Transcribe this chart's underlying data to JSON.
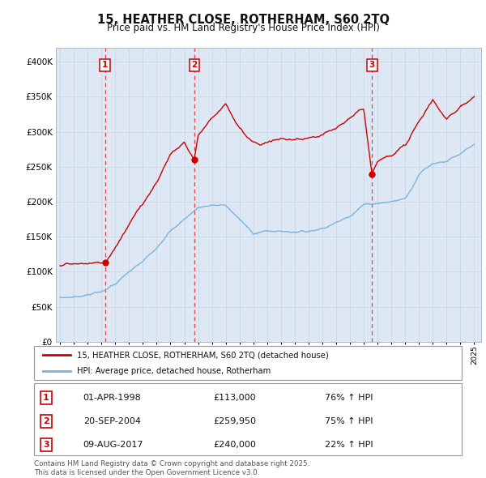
{
  "title": "15, HEATHER CLOSE, ROTHERHAM, S60 2TQ",
  "subtitle": "Price paid vs. HM Land Registry's House Price Index (HPI)",
  "sales": [
    {
      "date_num": 1998.25,
      "price": 113000,
      "label": "1",
      "date_str": "01-APR-1998",
      "pct": "76% ↑ HPI"
    },
    {
      "date_num": 2004.72,
      "price": 259950,
      "label": "2",
      "date_str": "20-SEP-2004",
      "pct": "75% ↑ HPI"
    },
    {
      "date_num": 2017.6,
      "price": 240000,
      "label": "3",
      "date_str": "09-AUG-2017",
      "pct": "22% ↑ HPI"
    }
  ],
  "hpi_line_color": "#7ab3e0",
  "price_line_color": "#cc0000",
  "sale_dot_color": "#cc0000",
  "dashed_line_color": "#dd4444",
  "grid_color": "#c8d8e8",
  "background_color": "#ffffff",
  "plot_bg_color": "#dde8f4",
  "xmin": 1994.7,
  "xmax": 2025.5,
  "ymin": 0,
  "ymax": 420000,
  "yticks": [
    0,
    50000,
    100000,
    150000,
    200000,
    250000,
    300000,
    350000,
    400000
  ],
  "ytick_labels": [
    "£0",
    "£50K",
    "£100K",
    "£150K",
    "£200K",
    "£250K",
    "£300K",
    "£350K",
    "£400K"
  ],
  "xticks": [
    1995,
    1996,
    1997,
    1998,
    1999,
    2000,
    2001,
    2002,
    2003,
    2004,
    2005,
    2006,
    2007,
    2008,
    2009,
    2010,
    2011,
    2012,
    2013,
    2014,
    2015,
    2016,
    2017,
    2018,
    2019,
    2020,
    2021,
    2022,
    2023,
    2024,
    2025
  ],
  "legend_label_red": "15, HEATHER CLOSE, ROTHERHAM, S60 2TQ (detached house)",
  "legend_label_blue": "HPI: Average price, detached house, Rotherham",
  "footer": "Contains HM Land Registry data © Crown copyright and database right 2025.\nThis data is licensed under the Open Government Licence v3.0.",
  "blue_knots_x": [
    1995,
    1996,
    1997,
    1998,
    1999,
    2000,
    2001,
    2002,
    2003,
    2004,
    2005,
    2006,
    2007,
    2007.5,
    2008,
    2009,
    2010,
    2011,
    2012,
    2013,
    2014,
    2015,
    2016,
    2017,
    2018,
    2019,
    2020,
    2020.5,
    2021,
    2022,
    2023,
    2024,
    2025
  ],
  "blue_knots_y": [
    63000,
    64000,
    67000,
    72000,
    82000,
    100000,
    115000,
    135000,
    158000,
    175000,
    192000,
    195000,
    195000,
    185000,
    175000,
    155000,
    158000,
    158000,
    157000,
    158000,
    162000,
    170000,
    180000,
    196000,
    198000,
    200000,
    205000,
    220000,
    240000,
    255000,
    258000,
    268000,
    282000
  ],
  "red_knots_x": [
    1995,
    1996,
    1997,
    1998.25,
    1999,
    2000,
    2001,
    2002,
    2003,
    2004,
    2004.72,
    2005,
    2006,
    2007,
    2007.5,
    2008,
    2009,
    2009.5,
    2010,
    2011,
    2012,
    2013,
    2014,
    2015,
    2016,
    2017,
    2017.6,
    2017.8,
    2018,
    2019,
    2020,
    2021,
    2022,
    2022.5,
    2023,
    2024,
    2025
  ],
  "red_knots_y": [
    110000,
    111000,
    112000,
    113000,
    135000,
    168000,
    198000,
    228000,
    268000,
    285000,
    259950,
    295000,
    320000,
    340000,
    320000,
    305000,
    285000,
    282000,
    285000,
    290000,
    288000,
    290000,
    295000,
    305000,
    320000,
    333000,
    240000,
    250000,
    258000,
    268000,
    280000,
    315000,
    345000,
    330000,
    320000,
    335000,
    350000
  ]
}
